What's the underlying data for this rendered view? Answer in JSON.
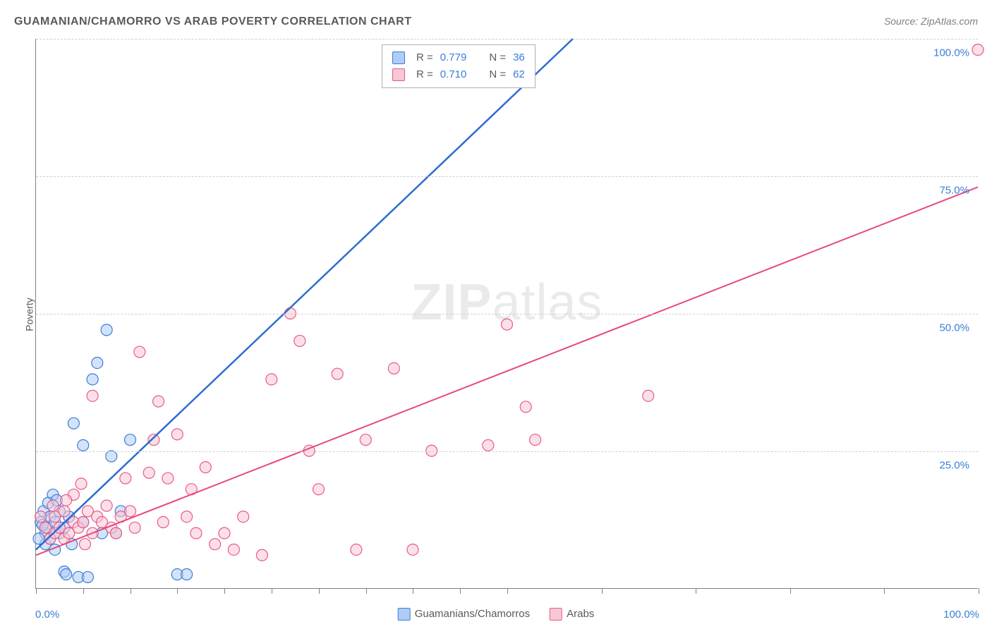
{
  "title": "GUAMANIAN/CHAMORRO VS ARAB POVERTY CORRELATION CHART",
  "source": "Source: ZipAtlas.com",
  "ylabel": "Poverty",
  "watermark_bold": "ZIP",
  "watermark_light": "atlas",
  "xlim": [
    0,
    100
  ],
  "ylim": [
    0,
    100
  ],
  "x_tick_positions": [
    0,
    5,
    10,
    15,
    20,
    25,
    30,
    35,
    40,
    45,
    50,
    60,
    70,
    80,
    90,
    100
  ],
  "y_gridlines": [
    25,
    50,
    75,
    100
  ],
  "y_tick_labels": [
    "25.0%",
    "50.0%",
    "75.0%",
    "100.0%"
  ],
  "x_tick_labels": {
    "left": "0.0%",
    "right": "100.0%"
  },
  "legend_bottom": [
    {
      "label": "Guamanians/Chamorros",
      "fill": "#aeccf4",
      "stroke": "#3b7dd8"
    },
    {
      "label": "Arabs",
      "fill": "#f7c7d4",
      "stroke": "#e85a8a"
    }
  ],
  "legend_box": [
    {
      "swatch_fill": "#aeccf4",
      "swatch_stroke": "#3b7dd8",
      "r_label": "R =",
      "r_value": "0.779",
      "n_label": "N =",
      "n_value": "36"
    },
    {
      "swatch_fill": "#f7c7d4",
      "swatch_stroke": "#e85a8a",
      "r_label": "R =",
      "r_value": "0.710",
      "n_label": "N =",
      "n_value": "62"
    }
  ],
  "trend_lines": [
    {
      "color": "#2d6cd0",
      "width": 2.5,
      "x1": 0,
      "y1": 7,
      "x2": 57,
      "y2": 100
    },
    {
      "color": "#e8487a",
      "width": 2,
      "x1": 0,
      "y1": 6,
      "x2": 100,
      "y2": 73
    }
  ],
  "series": [
    {
      "name": "guamanians",
      "fill": "#aeccf4",
      "stroke": "#3b7dd8",
      "fill_opacity": 0.55,
      "radius": 8,
      "points": [
        [
          0.5,
          12
        ],
        [
          0.8,
          14
        ],
        [
          1,
          10
        ],
        [
          1,
          8
        ],
        [
          1.2,
          11
        ],
        [
          1.5,
          13
        ],
        [
          1.5,
          9
        ],
        [
          1.8,
          17
        ],
        [
          2,
          12
        ],
        [
          2,
          7
        ],
        [
          2.5,
          10
        ],
        [
          2.5,
          14
        ],
        [
          3,
          11
        ],
        [
          3,
          3
        ],
        [
          3.5,
          13
        ],
        [
          3.8,
          8
        ],
        [
          4,
          30
        ],
        [
          4.5,
          2
        ],
        [
          5,
          26
        ],
        [
          5,
          12
        ],
        [
          6,
          38
        ],
        [
          6.5,
          41
        ],
        [
          7,
          10
        ],
        [
          7.5,
          47
        ],
        [
          8,
          24
        ],
        [
          3.2,
          2.5
        ],
        [
          5.5,
          2
        ],
        [
          8.5,
          10
        ],
        [
          9,
          14
        ],
        [
          10,
          27
        ],
        [
          1.3,
          15.5
        ],
        [
          2.2,
          16
        ],
        [
          0.3,
          9
        ],
        [
          0.7,
          11.5
        ],
        [
          15,
          2.5
        ],
        [
          16,
          2.5
        ]
      ]
    },
    {
      "name": "arabs",
      "fill": "#f7c7d4",
      "stroke": "#e85a8a",
      "fill_opacity": 0.55,
      "radius": 8,
      "points": [
        [
          1,
          11
        ],
        [
          1.5,
          9
        ],
        [
          2,
          13
        ],
        [
          2,
          10
        ],
        [
          2.5,
          11
        ],
        [
          3,
          9
        ],
        [
          3,
          14
        ],
        [
          3.5,
          10
        ],
        [
          4,
          12
        ],
        [
          4,
          17
        ],
        [
          4.5,
          11
        ],
        [
          5,
          12
        ],
        [
          5.2,
          8
        ],
        [
          5.5,
          14
        ],
        [
          6,
          10
        ],
        [
          6,
          35
        ],
        [
          6.5,
          13
        ],
        [
          7,
          12
        ],
        [
          7.5,
          15
        ],
        [
          8,
          11
        ],
        [
          8.5,
          10
        ],
        [
          9,
          13
        ],
        [
          9.5,
          20
        ],
        [
          10,
          14
        ],
        [
          10.5,
          11
        ],
        [
          11,
          43
        ],
        [
          12,
          21
        ],
        [
          12.5,
          27
        ],
        [
          13,
          34
        ],
        [
          13.5,
          12
        ],
        [
          14,
          20
        ],
        [
          15,
          28
        ],
        [
          16,
          13
        ],
        [
          16.5,
          18
        ],
        [
          17,
          10
        ],
        [
          18,
          22
        ],
        [
          19,
          8
        ],
        [
          20,
          10
        ],
        [
          21,
          7
        ],
        [
          22,
          13
        ],
        [
          24,
          6
        ],
        [
          25,
          38
        ],
        [
          27,
          50
        ],
        [
          28,
          45
        ],
        [
          29,
          25
        ],
        [
          30,
          18
        ],
        [
          32,
          39
        ],
        [
          34,
          7
        ],
        [
          35,
          27
        ],
        [
          38,
          40
        ],
        [
          40,
          7
        ],
        [
          42,
          25
        ],
        [
          48,
          26
        ],
        [
          50,
          48
        ],
        [
          52,
          33
        ],
        [
          53,
          27
        ],
        [
          65,
          35
        ],
        [
          100,
          98
        ],
        [
          0.5,
          13
        ],
        [
          1.8,
          15
        ],
        [
          3.2,
          16
        ],
        [
          4.8,
          19
        ]
      ]
    }
  ],
  "colors": {
    "background": "#ffffff",
    "axis": "#808080",
    "grid": "#d0d0d0",
    "title": "#5a5a5a",
    "tick_label": "#3b7dd8"
  }
}
